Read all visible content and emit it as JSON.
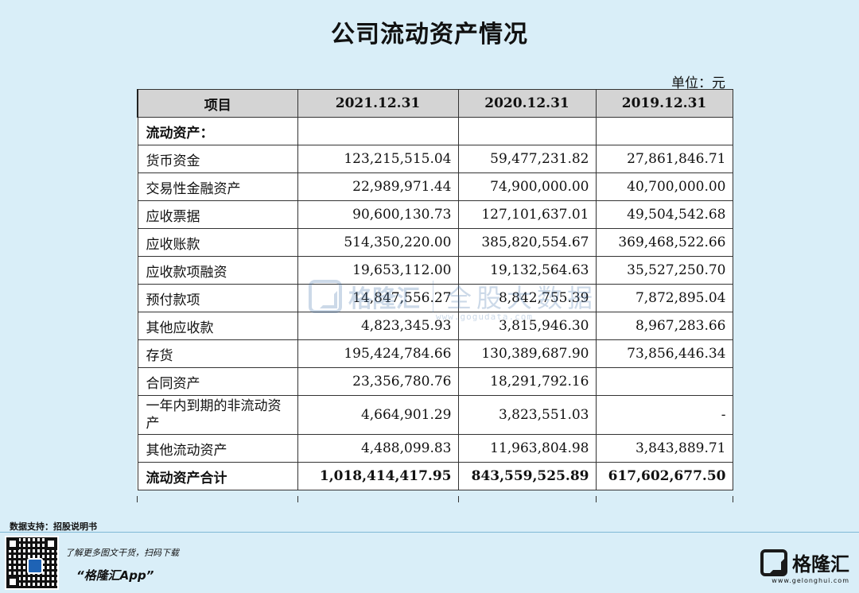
{
  "title": "公司流动资产情况",
  "unit": "单位：元",
  "table": {
    "headers": [
      "项目",
      "2021.12.31",
      "2020.12.31",
      "2019.12.31"
    ],
    "section_label": "流动资产：",
    "rows": [
      {
        "label": "货币资金",
        "v2021": "123,215,515.04",
        "v2020": "59,477,231.82",
        "v2019": "27,861,846.71"
      },
      {
        "label": "交易性金融资产",
        "v2021": "22,989,971.44",
        "v2020": "74,900,000.00",
        "v2019": "40,700,000.00"
      },
      {
        "label": "应收票据",
        "v2021": "90,600,130.73",
        "v2020": "127,101,637.01",
        "v2019": "49,504,542.68"
      },
      {
        "label": "应收账款",
        "v2021": "514,350,220.00",
        "v2020": "385,820,554.67",
        "v2019": "369,468,522.66"
      },
      {
        "label": "应收款项融资",
        "v2021": "19,653,112.00",
        "v2020": "19,132,564.63",
        "v2019": "35,527,250.70"
      },
      {
        "label": "预付款项",
        "v2021": "14,847,556.27",
        "v2020": "8,842,755.39",
        "v2019": "7,872,895.04"
      },
      {
        "label": "其他应收款",
        "v2021": "4,823,345.93",
        "v2020": "3,815,946.30",
        "v2019": "8,967,283.66"
      },
      {
        "label": "存货",
        "v2021": "195,424,784.66",
        "v2020": "130,389,687.90",
        "v2019": "73,856,446.34"
      },
      {
        "label": "合同资产",
        "v2021": "23,356,780.76",
        "v2020": "18,291,792.16",
        "v2019": ""
      },
      {
        "label": "一年内到期的非流动资产",
        "v2021": "4,664,901.29",
        "v2020": "3,823,551.03",
        "v2019": "-"
      },
      {
        "label": "其他流动资产",
        "v2021": "4,488,099.83",
        "v2020": "11,963,804.98",
        "v2019": "3,843,889.71"
      }
    ],
    "total": {
      "label": "流动资产合计",
      "v2021": "1,018,414,417.95",
      "v2020": "843,559,525.89",
      "v2019": "617,602,677.50"
    }
  },
  "watermark": {
    "brand": "格隆汇",
    "text": "全股大数据",
    "url": "www.gogudata.com"
  },
  "footer": {
    "source": "数据支持：招股说明书",
    "promo_line1": "了解更多图文干货，扫码下载",
    "promo_line2": "“格隆汇App”",
    "brand_name": "格隆汇",
    "brand_url": "www.gelonghui.com"
  }
}
